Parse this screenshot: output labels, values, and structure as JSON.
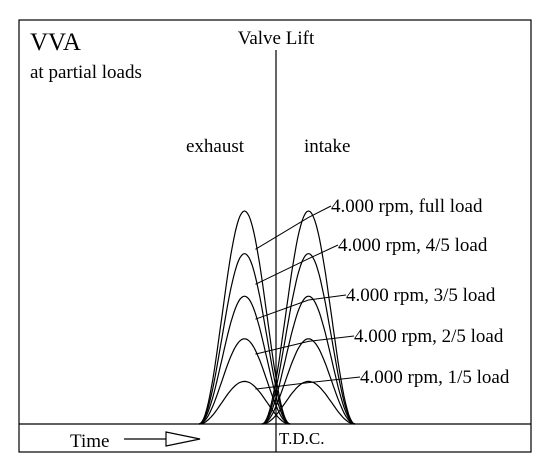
{
  "diagram": {
    "title": "VVA",
    "subtitle": "at partial loads",
    "axis_label": "Valve Lift",
    "exhaust_label": "exhaust",
    "intake_label": "intake",
    "time_label": "Time",
    "tdc_label": "T.D.C.",
    "load_fractions": [
      1.0,
      0.8,
      0.6,
      0.4,
      0.2
    ],
    "load_labels": [
      "4.000 rpm, full load",
      "4.000 rpm, 4/5 load",
      "4.000 rpm, 3/5 load",
      "4.000 rpm, 2/5 load",
      "4.000 rpm, 1/5 load"
    ],
    "line_color": "#000000",
    "background_color": "#ffffff"
  }
}
